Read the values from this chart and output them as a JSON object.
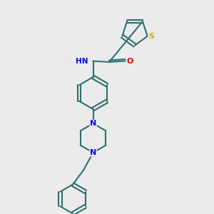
{
  "background_color": "#ebebeb",
  "bond_color": "#2d7070",
  "bond_width": 1.5,
  "atom_colors": {
    "S": "#b8b800",
    "N": "#0000ee",
    "O": "#ee0000",
    "C": "#2d7070",
    "H": "#5a8a8a"
  },
  "figsize": [
    3.0,
    3.0
  ],
  "dpi": 100,
  "xlim": [
    0,
    10
  ],
  "ylim": [
    0,
    10
  ]
}
